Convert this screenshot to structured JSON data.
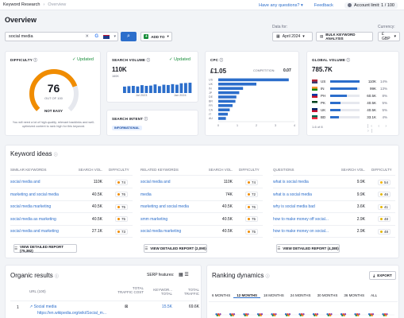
{
  "breadcrumb": {
    "item1": "Keyword Research",
    "item2": "Overview"
  },
  "topbar": {
    "questions": "Have any questions?",
    "feedback": "Feedback",
    "limit": "Account limit: 1 / 100"
  },
  "page_title": "Overview",
  "search": {
    "value": "social media",
    "add_to_label": "ADD TO"
  },
  "data_for": {
    "label": "Data for:",
    "value": "April 2024",
    "bulk_label": "BULK KEYWORD ANALYSIS"
  },
  "currency": {
    "label": "Currency:",
    "value": "£ GBP"
  },
  "difficulty": {
    "label": "DIFFICULTY",
    "updated": "Updated",
    "value": "76",
    "out_of": "OUT OF 100",
    "level": "NOT EASY",
    "note": "You will need a lot of high-quality, relevant backlinks and well-optimized content to rank high for this keyword.",
    "gauge_fraction": 0.76
  },
  "search_volume": {
    "label": "SEARCH VOLUME",
    "updated": "Updated",
    "value": "110K",
    "axis_top": "160K",
    "x_start": "Jul 2023",
    "x_end": "Jan 2024",
    "bars": [
      0.45,
      0.48,
      0.5,
      0.46,
      0.55,
      0.5,
      0.52,
      0.6,
      0.48,
      0.58,
      0.56,
      0.62,
      0.58,
      0.68,
      0.7,
      0.72
    ]
  },
  "search_intent": {
    "label": "SEARCH INTENT",
    "value": "INFORMATIONAL"
  },
  "cpc": {
    "label": "CPC",
    "value": "£1.05",
    "competition_label": "COMPETITION:",
    "competition": "0.07",
    "countries": [
      "US",
      "UK",
      "IN",
      "JP",
      "DE",
      "BR",
      "FR",
      "CA",
      "IT",
      "AU"
    ],
    "bar_values": [
      3.7,
      2.0,
      1.3,
      1.1,
      0.95,
      0.9,
      0.75,
      0.6,
      0.5,
      0.4
    ],
    "x_ticks": [
      "0",
      "1",
      "2",
      "3",
      "4"
    ]
  },
  "global_volume": {
    "label": "GLOBAL VOLUME",
    "value": "785.7K",
    "rows": [
      {
        "code": "US",
        "num": "110K",
        "pct": "14%",
        "colors": [
          "#b22234",
          "#3c3b6e"
        ],
        "share": 0.14
      },
      {
        "code": "IN",
        "num": "99K",
        "pct": "13%",
        "colors": [
          "#ff9933",
          "#138808"
        ],
        "share": 0.13
      },
      {
        "code": "PH",
        "num": "60.5K",
        "pct": "8%",
        "colors": [
          "#0038a8",
          "#ce1126"
        ],
        "share": 0.08
      },
      {
        "code": "PK",
        "num": "40.5K",
        "pct": "5%",
        "colors": [
          "#01411c",
          "#ffffff"
        ],
        "share": 0.05
      },
      {
        "code": "UK",
        "num": "40.5K",
        "pct": "5%",
        "colors": [
          "#012169",
          "#c8102e"
        ],
        "share": 0.05
      },
      {
        "code": "BD",
        "num": "33.1K",
        "pct": "4%",
        "colors": [
          "#006a4e",
          "#f42a41"
        ],
        "share": 0.04
      }
    ],
    "pagination": "1-6 of 8"
  },
  "keyword_ideas": {
    "title": "Keyword ideas",
    "columns": [
      {
        "header": "SIMILAR KEYWORDS",
        "vol_header": "SEARCH VOL.",
        "kd_header": "DIFFICULTY",
        "button": "VIEW DETAILED REPORT (75,382)",
        "rows": [
          {
            "kw": "social media and",
            "vol": "110K",
            "kd": "74"
          },
          {
            "kw": "marketing and social media",
            "vol": "40.5K",
            "kd": "76"
          },
          {
            "kw": "social media marketing",
            "vol": "40.5K",
            "kd": "75"
          },
          {
            "kw": "social media as marketing",
            "vol": "40.5K",
            "kd": "75"
          },
          {
            "kw": "social media and marketing",
            "vol": "27.1K",
            "kd": "73"
          }
        ]
      },
      {
        "header": "RELATED KEYWORDS",
        "vol_header": "SEARCH VOL.",
        "kd_header": "DIFFICULTY",
        "button": "VIEW DETAILED REPORT (2,090)",
        "rows": [
          {
            "kw": "social media and",
            "vol": "110K",
            "kd": "74"
          },
          {
            "kw": "media",
            "vol": "74K",
            "kd": "72"
          },
          {
            "kw": "marketing and social media",
            "vol": "40.5K",
            "kd": "76"
          },
          {
            "kw": "smm marketing",
            "vol": "40.5K",
            "kd": "75"
          },
          {
            "kw": "social media marketing",
            "vol": "40.5K",
            "kd": "75"
          }
        ]
      },
      {
        "header": "QUESTIONS",
        "vol_header": "SEARCH VOL.",
        "kd_header": "DIFFICULTY",
        "button": "VIEW DETAILED REPORT (4,380)",
        "rows": [
          {
            "kw": "what is social media",
            "vol": "9.9K",
            "kd": "54"
          },
          {
            "kw": "what is a social media",
            "vol": "9.9K",
            "kd": "46"
          },
          {
            "kw": "why is social media bad",
            "vol": "3.6K",
            "kd": "41"
          },
          {
            "kw": "how to make money off social...",
            "vol": "2.9K",
            "kd": "48"
          },
          {
            "kw": "how to make money on social...",
            "vol": "2.9K",
            "kd": "48"
          }
        ]
      }
    ]
  },
  "organic": {
    "title": "Organic results",
    "serp_label": "SERP features:",
    "headers": {
      "url": "URL (100)",
      "traffic_cost": "TOTAL TRAFFIC COST",
      "keywords": "KEYWOR... TOTAL",
      "traffic": "TOTAL TRAFFIC"
    },
    "row": {
      "rank": "1",
      "title": "Social media",
      "url": "https://en.wikipedia.org/wiki/Social_m...",
      "keywords": "15.5K",
      "traffic": "69.6K"
    }
  },
  "ranking": {
    "title": "Ranking dynamics",
    "export": "EXPORT",
    "tabs": [
      "6 MONTHS",
      "12 MONTHS",
      "18 MONTHS",
      "24 MONTHS",
      "30 MONTHS",
      "36 MONTHS",
      "ALL"
    ],
    "active_tab": 1
  }
}
